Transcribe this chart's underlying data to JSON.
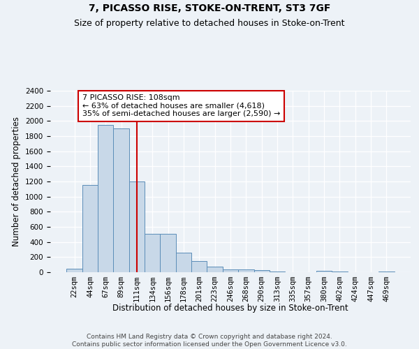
{
  "title": "7, PICASSO RISE, STOKE-ON-TRENT, ST3 7GF",
  "subtitle": "Size of property relative to detached houses in Stoke-on-Trent",
  "xlabel": "Distribution of detached houses by size in Stoke-on-Trent",
  "ylabel": "Number of detached properties",
  "categories": [
    "22sqm",
    "44sqm",
    "67sqm",
    "89sqm",
    "111sqm",
    "134sqm",
    "156sqm",
    "178sqm",
    "201sqm",
    "223sqm",
    "246sqm",
    "268sqm",
    "290sqm",
    "313sqm",
    "335sqm",
    "357sqm",
    "380sqm",
    "402sqm",
    "424sqm",
    "447sqm",
    "469sqm"
  ],
  "values": [
    50,
    1150,
    1950,
    1900,
    1200,
    510,
    510,
    260,
    150,
    70,
    35,
    35,
    25,
    10,
    0,
    0,
    15,
    10,
    0,
    0,
    5
  ],
  "bar_color": "#c8d8e8",
  "bar_edge_color": "#5b8db8",
  "vline_x_idx": 4,
  "vline_color": "#cc0000",
  "annotation_text": "7 PICASSO RISE: 108sqm\n← 63% of detached houses are smaller (4,618)\n35% of semi-detached houses are larger (2,590) →",
  "annotation_box_facecolor": "#ffffff",
  "annotation_box_edgecolor": "#cc0000",
  "ylim_max": 2400,
  "yticks": [
    0,
    200,
    400,
    600,
    800,
    1000,
    1200,
    1400,
    1600,
    1800,
    2000,
    2200,
    2400
  ],
  "footer_line1": "Contains HM Land Registry data © Crown copyright and database right 2024.",
  "footer_line2": "Contains public sector information licensed under the Open Government Licence v3.0.",
  "background_color": "#edf2f7",
  "grid_color": "#ffffff",
  "title_fontsize": 10,
  "subtitle_fontsize": 9,
  "axis_label_fontsize": 8.5,
  "tick_fontsize": 7.5,
  "footer_fontsize": 6.5,
  "annotation_fontsize": 8
}
